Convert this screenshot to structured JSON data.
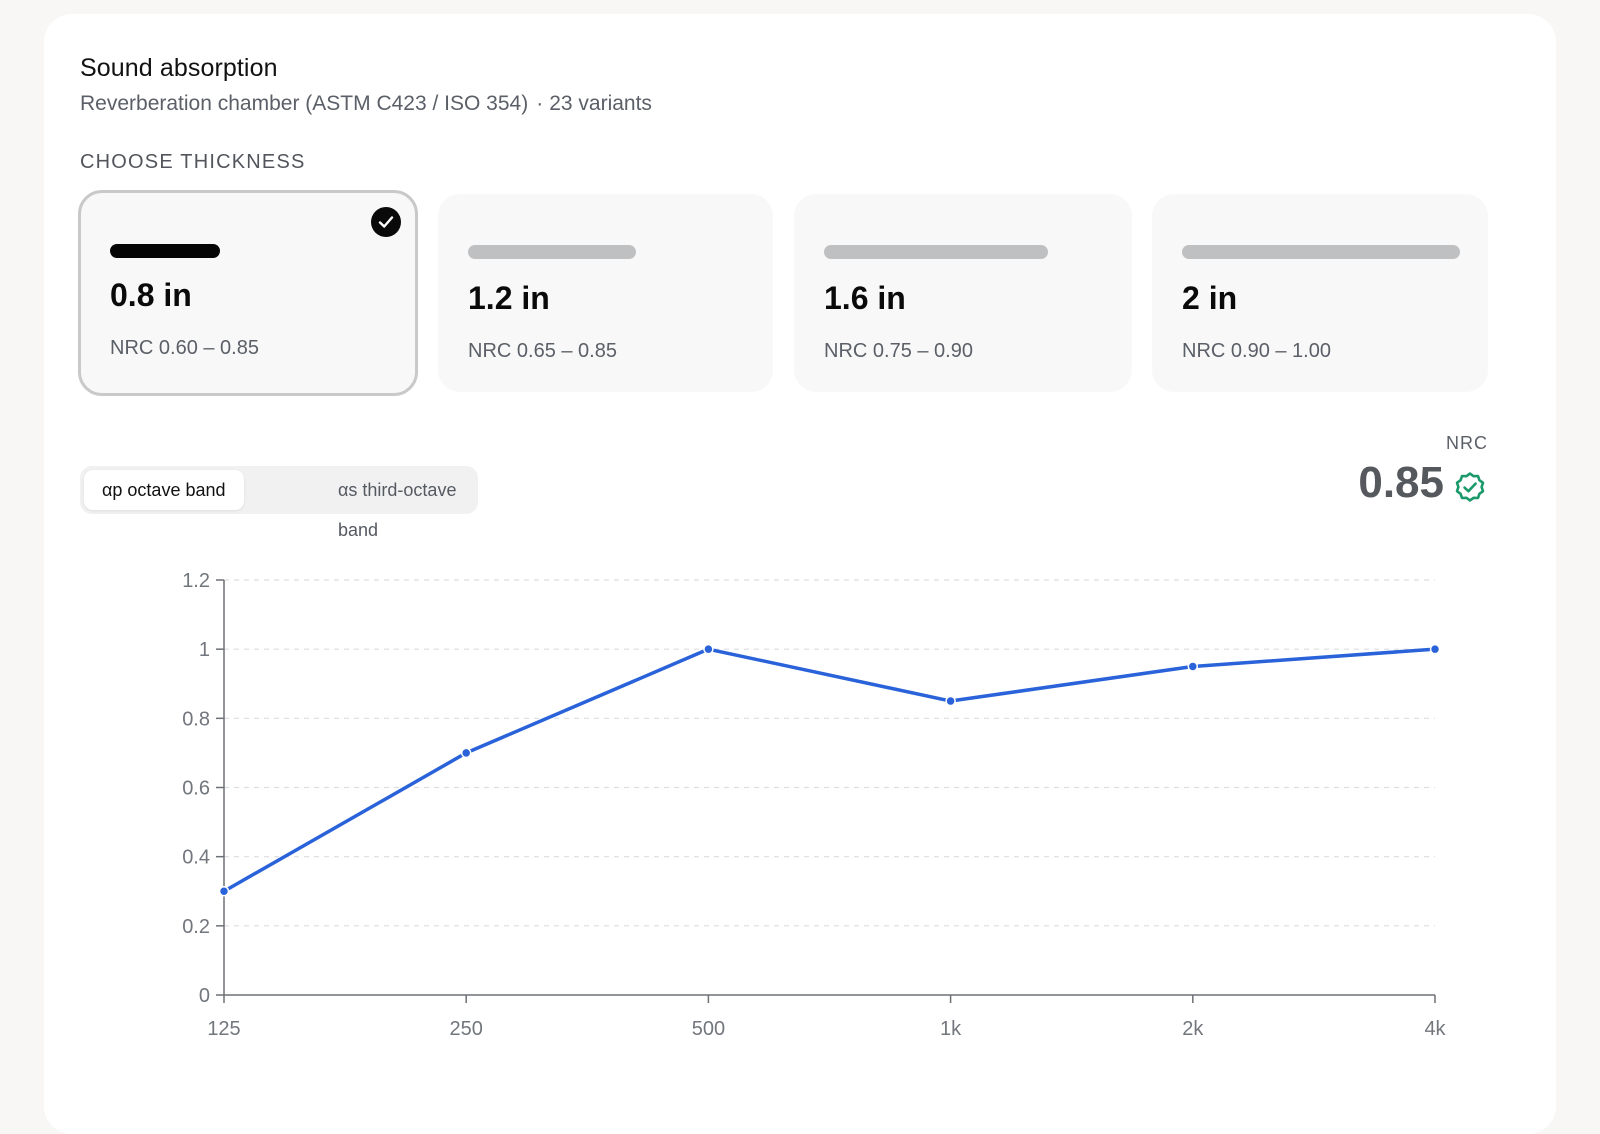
{
  "header": {
    "title": "Sound absorption",
    "subtitle_method": "Reverberation chamber (ASTM C423 / ISO 354)",
    "subtitle_sep": "·",
    "subtitle_variants": "23 variants"
  },
  "thickness": {
    "label": "CHOOSE THICKNESS",
    "selected_index": 0,
    "options": [
      {
        "value": "0.8 in",
        "nrc": "NRC 0.60 – 0.85",
        "relative_thickness": 0.4
      },
      {
        "value": "1.2 in",
        "nrc": "NRC 0.65 – 0.85",
        "relative_thickness": 0.6
      },
      {
        "value": "1.6 in",
        "nrc": "NRC 0.75 – 0.90",
        "relative_thickness": 0.8
      },
      {
        "value": "2 in",
        "nrc": "NRC 0.90 – 1.00",
        "relative_thickness": 1.0
      }
    ]
  },
  "band_toggle": {
    "options": [
      "αp octave band",
      "αs third-octave band"
    ],
    "selected_index": 0
  },
  "nrc": {
    "label": "NRC",
    "value": "0.85",
    "status_icon": "check-badge-icon",
    "status_color": "#1a9a6a"
  },
  "colors": {
    "accent": "#2962d9",
    "selected": "#050505"
  },
  "chart_data": {
    "type": "line",
    "categories": [
      "125",
      "250",
      "500",
      "1k",
      "2k",
      "4k"
    ],
    "series": [
      {
        "values": [
          0.3,
          0.7,
          1.0,
          0.85,
          0.95,
          1.0
        ]
      }
    ],
    "ylim": [
      0,
      1.2
    ],
    "yticks": [
      0,
      0.2,
      0.4,
      0.6,
      0.8,
      1,
      1.2
    ],
    "ytick_labels": [
      "0",
      "0.2",
      "0.4",
      "0.6",
      "0.8",
      "1",
      "1.2"
    ],
    "grid": true,
    "legend": "none"
  }
}
